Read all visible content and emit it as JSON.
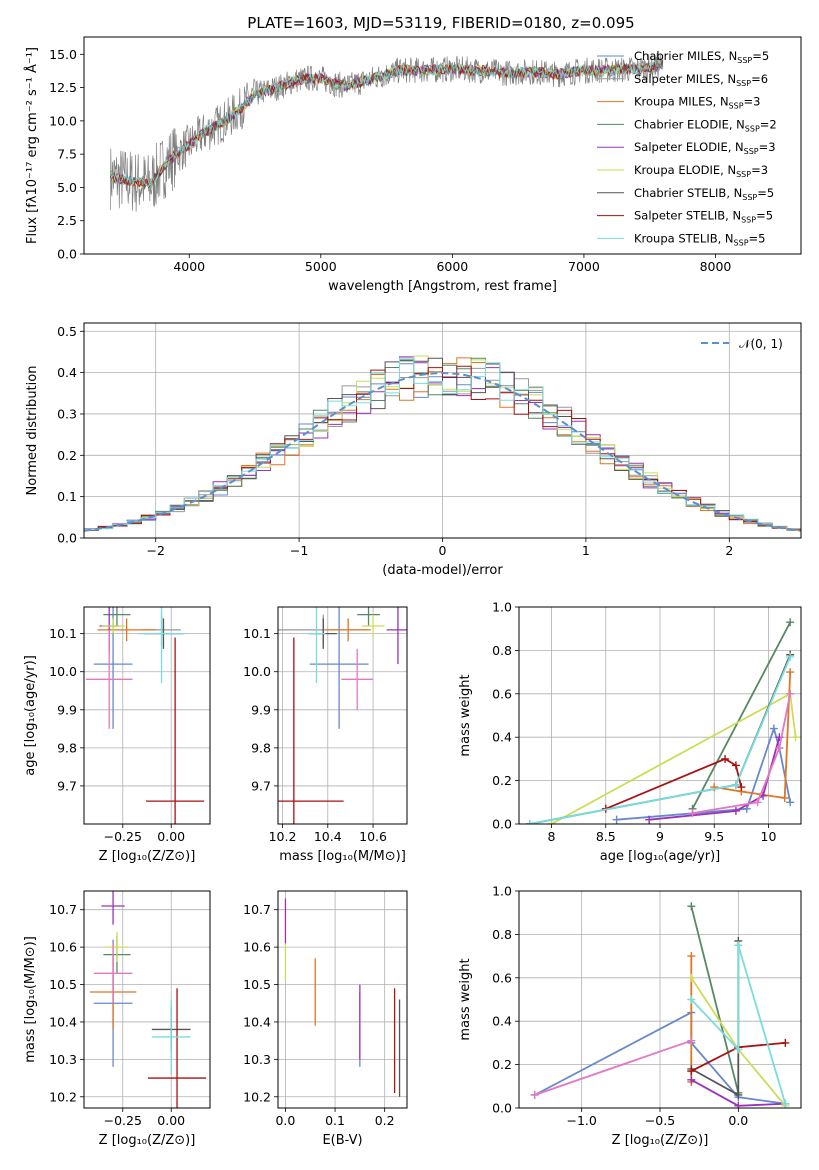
{
  "figure": {
    "title": "PLATE=1603, MJD=53119, FIBERID=0180, z=0.095"
  },
  "chart_data": [
    {
      "id": "spectrum",
      "type": "line",
      "xlabel": "wavelength [Angstrom, rest frame]",
      "ylabel": "Flux [fλ10⁻¹⁷ erg cm⁻² s⁻¹ Å⁻¹]",
      "xlim": [
        3200,
        8650
      ],
      "ylim": [
        0,
        16.3
      ],
      "xticks": [
        4000,
        5000,
        6000,
        7000,
        8000
      ],
      "yticks": [
        0.0,
        2.5,
        5.0,
        7.5,
        10.0,
        12.5,
        15.0
      ],
      "grid": false,
      "legend_position": "top-right",
      "legend": [
        {
          "label": "Chabrier MILES, N",
          "sub": "SSP",
          "n": "=5",
          "color": "#6688cc"
        },
        {
          "label": "Salpeter MILES, N",
          "sub": "SSP",
          "n": "=6",
          "color": "#999999"
        },
        {
          "label": "Kroupa MILES, N",
          "sub": "SSP",
          "n": "=3",
          "color": "#dd7722"
        },
        {
          "label": "Chabrier ELODIE, N",
          "sub": "SSP",
          "n": "=2",
          "color": "#558866"
        },
        {
          "label": "Salpeter ELODIE, N",
          "sub": "SSP",
          "n": "=3",
          "color": "#9933bb"
        },
        {
          "label": "Kroupa ELODIE, N",
          "sub": "SSP",
          "n": "=3",
          "color": "#ccdd55"
        },
        {
          "label": "Chabrier STELIB, N",
          "sub": "SSP",
          "n": "=5",
          "color": "#555555"
        },
        {
          "label": "Salpeter STELIB, N",
          "sub": "SSP",
          "n": "=5",
          "color": "#aa1111"
        },
        {
          "label": "Kroupa STELIB, N",
          "sub": "SSP",
          "n": "=5",
          "color": "#77dddd"
        }
      ],
      "data_color": "#808080",
      "model_color": "#77dddd",
      "continuum": {
        "x": [
          3400,
          3500,
          3600,
          3700,
          3800,
          3900,
          4000,
          4100,
          4200,
          4300,
          4400,
          4500,
          4600,
          4700,
          4800,
          4900,
          5000,
          5100,
          5200,
          5400,
          5600,
          5800,
          6000,
          6200,
          6400,
          6600,
          6800,
          7000,
          7200,
          7400,
          7600
        ],
        "y": [
          5.8,
          5.6,
          5.4,
          5.2,
          6.5,
          7.5,
          8.2,
          9.0,
          9.6,
          10.2,
          11.0,
          12.0,
          12.3,
          12.6,
          13.0,
          13.2,
          13.2,
          12.8,
          12.6,
          13.2,
          13.8,
          13.8,
          13.9,
          13.8,
          13.6,
          13.7,
          13.5,
          13.8,
          13.8,
          13.9,
          14.2
        ]
      }
    },
    {
      "id": "residuals",
      "type": "line",
      "xlabel": "(data-model)/error",
      "ylabel": "Normed distribution",
      "xlim": [
        -2.5,
        2.5
      ],
      "ylim": [
        0,
        0.52
      ],
      "xticks": [
        -2,
        -1,
        0,
        1,
        2
      ],
      "yticks": [
        0.0,
        0.1,
        0.2,
        0.3,
        0.4,
        0.5
      ],
      "grid": true,
      "legend_position": "top-right",
      "legend": [
        {
          "label": "𝒩(0, 1)",
          "color": "#5b8fcf",
          "style": "dashed"
        }
      ],
      "normal_curve": {
        "mu": 0,
        "sigma": 1
      }
    },
    {
      "id": "age-vs-Z",
      "type": "scatter",
      "xlabel": "Z [log₁₀(Z/Z⊙)]",
      "ylabel": "age  [log₁₀(age/yr)]",
      "xlim": [
        -0.45,
        0.2
      ],
      "ylim": [
        9.6,
        10.17
      ],
      "xticks": [
        -0.25,
        0.0
      ],
      "xticklabels": [
        "−0.25",
        "0.00"
      ],
      "yticks": [
        9.7,
        9.8,
        9.9,
        10.0,
        10.1
      ],
      "grid": true,
      "points": [
        {
          "x": -0.3,
          "y": 10.02,
          "xerr": 0.1,
          "yerr": 0.17,
          "color": "#6688cc"
        },
        {
          "x": -0.05,
          "y": 10.11,
          "xerr": 0.1,
          "yerr": 0.04,
          "color": "#999999"
        },
        {
          "x": -0.23,
          "y": 10.11,
          "xerr": 0.15,
          "yerr": 0.03,
          "color": "#dd7722"
        },
        {
          "x": -0.28,
          "y": 10.15,
          "xerr": 0.07,
          "yerr": 0.03,
          "color": "#558866"
        },
        {
          "x": -0.32,
          "y": 10.12,
          "xerr": 0.05,
          "yerr": 0.07,
          "color": "#9933bb"
        },
        {
          "x": -0.3,
          "y": 10.12,
          "xerr": 0.06,
          "yerr": 0.02,
          "color": "#ccdd55"
        },
        {
          "x": -0.04,
          "y": 10.1,
          "xerr": 0.1,
          "yerr": 0.04,
          "color": "#555555"
        },
        {
          "x": 0.02,
          "y": 9.66,
          "xerr": 0.15,
          "yerr": 0.43,
          "color": "#aa1111"
        },
        {
          "x": -0.05,
          "y": 10.1,
          "xerr": 0.12,
          "yerr": 0.13,
          "color": "#77dddd"
        },
        {
          "x": -0.32,
          "y": 9.98,
          "xerr": 0.12,
          "yerr": 0.13,
          "color": "#e377c2"
        }
      ]
    },
    {
      "id": "age-vs-mass",
      "type": "scatter",
      "xlabel": "mass [log₁₀(M/M⊙)]",
      "ylabel": "",
      "xlim": [
        10.18,
        10.75
      ],
      "ylim": [
        9.6,
        10.17
      ],
      "xticks": [
        10.2,
        10.4,
        10.6
      ],
      "yticks": [
        9.7,
        9.8,
        9.9,
        10.0,
        10.1
      ],
      "grid": true,
      "points": [
        {
          "x": 10.45,
          "y": 10.02,
          "xerr": 0.13,
          "yerr": 0.17,
          "color": "#6688cc"
        },
        {
          "x": 10.38,
          "y": 10.11,
          "xerr": 0.2,
          "yerr": 0.04,
          "color": "#999999"
        },
        {
          "x": 10.49,
          "y": 10.11,
          "xerr": 0.1,
          "yerr": 0.03,
          "color": "#dd7722"
        },
        {
          "x": 10.58,
          "y": 10.15,
          "xerr": 0.05,
          "yerr": 0.03,
          "color": "#558866"
        },
        {
          "x": 10.71,
          "y": 10.11,
          "xerr": 0.05,
          "yerr": 0.09,
          "color": "#9933bb"
        },
        {
          "x": 10.6,
          "y": 10.12,
          "xerr": 0.05,
          "yerr": 0.03,
          "color": "#ccdd55"
        },
        {
          "x": 10.38,
          "y": 10.1,
          "xerr": 0.06,
          "yerr": 0.04,
          "color": "#555555"
        },
        {
          "x": 10.25,
          "y": 9.66,
          "xerr": 0.22,
          "yerr": 0.43,
          "color": "#aa1111"
        },
        {
          "x": 10.35,
          "y": 10.1,
          "xerr": 0.04,
          "yerr": 0.13,
          "color": "#77dddd"
        },
        {
          "x": 10.53,
          "y": 9.98,
          "xerr": 0.07,
          "yerr": 0.08,
          "color": "#e377c2"
        }
      ]
    },
    {
      "id": "mass-weight-vs-age",
      "type": "line",
      "xlabel": "age  [log₁₀(age/yr)]",
      "ylabel": "mass weight",
      "xlim": [
        7.7,
        10.3
      ],
      "ylim": [
        0,
        1.0
      ],
      "xticks": [
        8.0,
        8.5,
        9.0,
        9.5,
        10.0
      ],
      "yticks": [
        0.0,
        0.2,
        0.4,
        0.6,
        0.8,
        1.0
      ],
      "grid": true,
      "series": [
        {
          "color": "#6688cc",
          "x": [
            8.6,
            9.8,
            10.05,
            10.1,
            10.2
          ],
          "y": [
            0.02,
            0.07,
            0.44,
            0.35,
            0.1
          ]
        },
        {
          "color": "#dd7722",
          "x": [
            9.5,
            9.75,
            10.15,
            10.2
          ],
          "y": [
            0.17,
            0.15,
            0.12,
            0.7
          ]
        },
        {
          "color": "#558866",
          "x": [
            9.3,
            10.2
          ],
          "y": [
            0.07,
            0.93
          ]
        },
        {
          "color": "#9933bb",
          "x": [
            8.9,
            9.7,
            9.95,
            10.1
          ],
          "y": [
            0.02,
            0.06,
            0.13,
            0.4
          ]
        },
        {
          "color": "#ccdd55",
          "x": [
            8.0,
            10.2,
            10.25
          ],
          "y": [
            0.0,
            0.6,
            0.4
          ]
        },
        {
          "color": "#555555",
          "x": [
            7.8,
            9.7,
            10.2
          ],
          "y": [
            0.0,
            0.18,
            0.78
          ]
        },
        {
          "color": "#aa1111",
          "x": [
            8.5,
            9.6,
            9.7,
            9.75
          ],
          "y": [
            0.07,
            0.3,
            0.27,
            0.17
          ]
        },
        {
          "color": "#77dddd",
          "x": [
            7.8,
            9.7,
            10.2
          ],
          "y": [
            0.0,
            0.18,
            0.77
          ]
        },
        {
          "color": "#e377c2",
          "x": [
            9.3,
            9.9,
            10.1,
            10.2
          ],
          "y": [
            0.05,
            0.1,
            0.35,
            0.6
          ]
        }
      ]
    },
    {
      "id": "mass-vs-Z",
      "type": "scatter",
      "xlabel": "Z [log₁₀(Z/Z⊙)]",
      "ylabel": "mass [log₁₀(M/M⊙)]",
      "xlim": [
        -0.45,
        0.2
      ],
      "ylim": [
        10.17,
        10.75
      ],
      "xticks": [
        -0.25,
        0.0
      ],
      "xticklabels": [
        "−0.25",
        "0.00"
      ],
      "yticks": [
        10.2,
        10.3,
        10.4,
        10.5,
        10.6,
        10.7
      ],
      "grid": true,
      "points": [
        {
          "x": -0.3,
          "y": 10.45,
          "xerr": 0.1,
          "yerr": 0.17,
          "color": "#6688cc"
        },
        {
          "x": -0.3,
          "y": 10.48,
          "xerr": 0.12,
          "yerr": 0.1,
          "color": "#dd7722"
        },
        {
          "x": -0.28,
          "y": 10.58,
          "xerr": 0.07,
          "yerr": 0.05,
          "color": "#558866"
        },
        {
          "x": -0.3,
          "y": 10.71,
          "xerr": 0.06,
          "yerr": 0.05,
          "color": "#9933bb"
        },
        {
          "x": -0.28,
          "y": 10.6,
          "xerr": 0.06,
          "yerr": 0.04,
          "color": "#ccdd55"
        },
        {
          "x": 0.0,
          "y": 10.38,
          "xerr": 0.1,
          "yerr": 0.06,
          "color": "#555555"
        },
        {
          "x": 0.03,
          "y": 10.25,
          "xerr": 0.15,
          "yerr": 0.24,
          "color": "#aa1111"
        },
        {
          "x": 0.0,
          "y": 10.36,
          "xerr": 0.1,
          "yerr": 0.1,
          "color": "#77dddd"
        },
        {
          "x": -0.3,
          "y": 10.53,
          "xerr": 0.1,
          "yerr": 0.08,
          "color": "#e377c2"
        }
      ]
    },
    {
      "id": "mass-vs-ebv",
      "type": "scatter",
      "xlabel": "E(B-V)",
      "ylabel": "",
      "xlim": [
        -0.015,
        0.245
      ],
      "ylim": [
        10.17,
        10.75
      ],
      "xticks": [
        0.0,
        0.1,
        0.2
      ],
      "xticklabels": [
        "0.0",
        "0.1",
        "0.2"
      ],
      "yticks": [
        10.2,
        10.3,
        10.4,
        10.5,
        10.6,
        10.7
      ],
      "grid": true,
      "points": [
        {
          "x": 0.0,
          "y": 10.67,
          "xerr": 0,
          "yerr": 0.06,
          "color": "#9933bb"
        },
        {
          "x": 0.0,
          "y": 10.56,
          "xerr": 0,
          "yerr": 0.05,
          "color": "#ccdd55"
        },
        {
          "x": 0.06,
          "y": 10.48,
          "xerr": 0,
          "yerr": 0.09,
          "color": "#dd7722"
        },
        {
          "x": 0.15,
          "y": 10.38,
          "xerr": 0,
          "yerr": 0.1,
          "color": "#6688cc"
        },
        {
          "x": 0.15,
          "y": 10.4,
          "xerr": 0,
          "yerr": 0.1,
          "color": "#9933bb"
        },
        {
          "x": 0.22,
          "y": 10.35,
          "xerr": 0,
          "yerr": 0.14,
          "color": "#aa1111"
        },
        {
          "x": 0.23,
          "y": 10.33,
          "xerr": 0,
          "yerr": 0.13,
          "color": "#555555"
        }
      ]
    },
    {
      "id": "mass-weight-vs-Z",
      "type": "line",
      "xlabel": "Z [log₁₀(Z/Z⊙)]",
      "ylabel": "mass weight",
      "xlim": [
        -1.4,
        0.4
      ],
      "ylim": [
        0,
        1.0
      ],
      "xticks": [
        -1.0,
        -0.5,
        0.0
      ],
      "xticklabels": [
        "−1.0",
        "−0.5",
        "0.0"
      ],
      "yticks": [
        0.0,
        0.2,
        0.4,
        0.6,
        0.8,
        1.0
      ],
      "grid": true,
      "series": [
        {
          "color": "#6688cc",
          "x": [
            -1.3,
            -0.3,
            -0.3,
            0.0,
            0.3
          ],
          "y": [
            0.06,
            0.44,
            0.3,
            0.05,
            0.02
          ]
        },
        {
          "color": "#dd7722",
          "x": [
            -0.3,
            -0.3,
            -0.3
          ],
          "y": [
            0.12,
            0.7,
            0.17
          ]
        },
        {
          "color": "#558866",
          "x": [
            -0.3,
            0.0
          ],
          "y": [
            0.93,
            0.07
          ]
        },
        {
          "color": "#9933bb",
          "x": [
            -0.3,
            0.0,
            0.3
          ],
          "y": [
            0.13,
            0.01,
            0.02
          ]
        },
        {
          "color": "#ccdd55",
          "x": [
            -0.3,
            0.0,
            0.3
          ],
          "y": [
            0.6,
            0.27,
            0.01
          ]
        },
        {
          "color": "#555555",
          "x": [
            -0.3,
            0.0,
            0.0
          ],
          "y": [
            0.18,
            0.06,
            0.77
          ]
        },
        {
          "color": "#aa1111",
          "x": [
            -0.3,
            0.0,
            0.3
          ],
          "y": [
            0.17,
            0.28,
            0.3
          ]
        },
        {
          "color": "#77dddd",
          "x": [
            -0.3,
            0.0,
            0.0,
            0.3
          ],
          "y": [
            0.5,
            0.27,
            0.75,
            0.02
          ]
        },
        {
          "color": "#e377c2",
          "x": [
            -1.3,
            -0.3
          ],
          "y": [
            0.06,
            0.31
          ]
        }
      ]
    }
  ]
}
